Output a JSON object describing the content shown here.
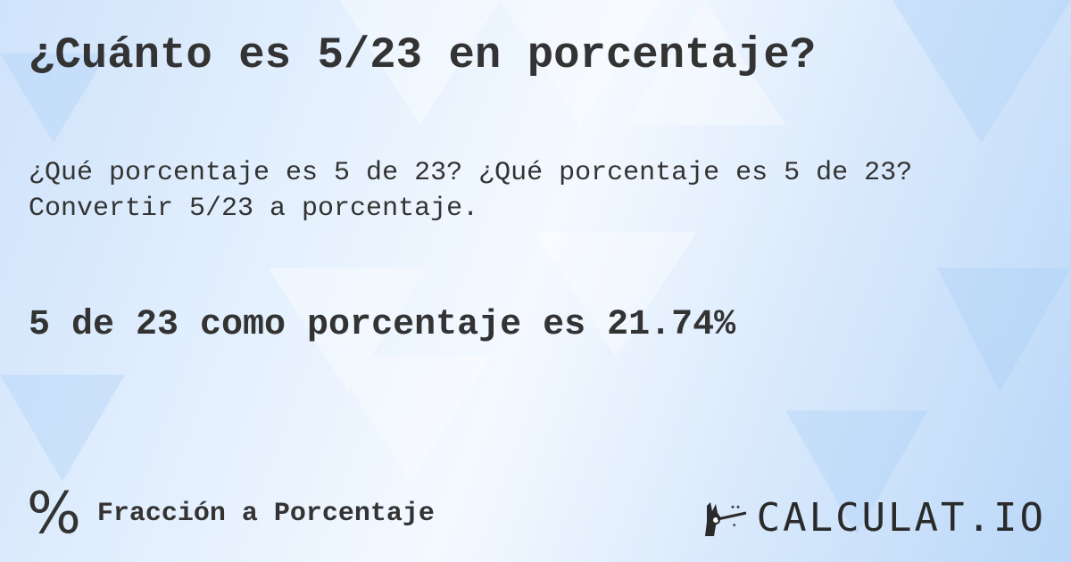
{
  "title": "¿Cuánto es 5/23 en porcentaje?",
  "description": "¿Qué porcentaje es 5 de 23? ¿Qué porcentaje es 5 de 23? Convertir 5/23 a porcentaje.",
  "result": "5 de 23 como porcentaje es 21.74%",
  "footer": {
    "icon": "percent-icon",
    "symbol": "%",
    "label": "Fracción a Porcentaje"
  },
  "logo": {
    "text": "CALCULAT.IO",
    "icon": "magic-hand-wand-icon"
  },
  "colors": {
    "text": "#333333",
    "background": "#dcebfc"
  }
}
